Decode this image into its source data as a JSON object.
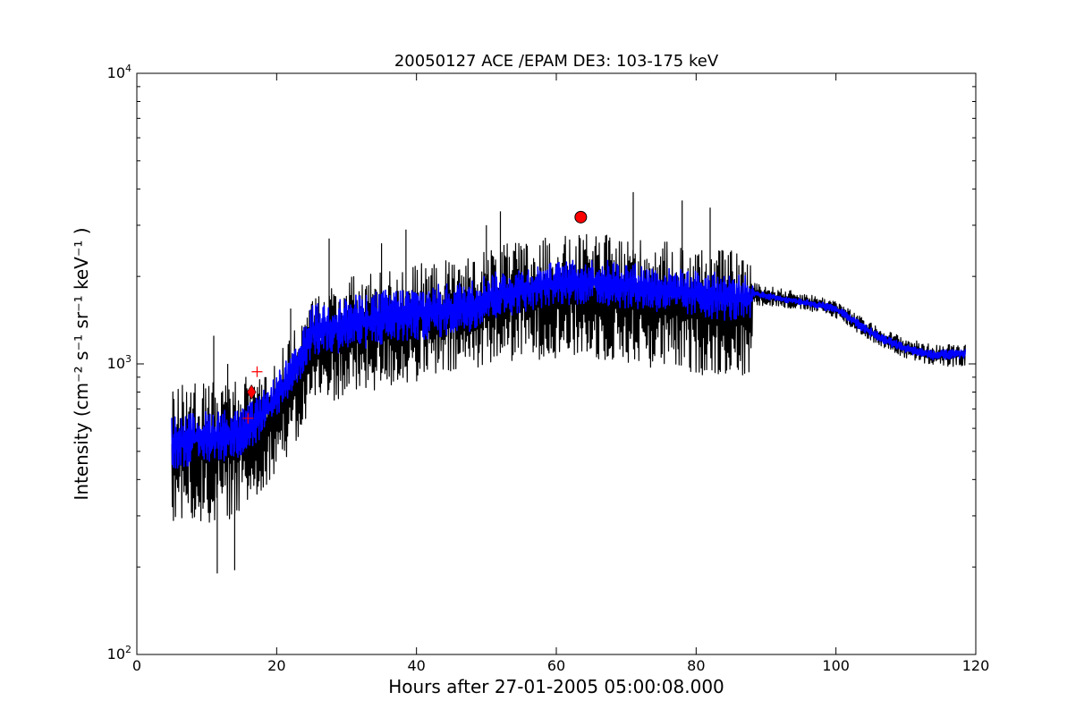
{
  "chart_data": {
    "type": "line",
    "title": "20050127 ACE /EPAM DE3: 103-175 keV",
    "xlabel": "Hours after 27-01-2005 05:00:08.000",
    "ylabel": "Intensity (cm⁻² s⁻¹ sr⁻¹ keV⁻¹ )",
    "xlim": [
      0,
      120
    ],
    "ylim": [
      100,
      10000
    ],
    "yscale": "log",
    "grid": false,
    "x_ticks": [
      0,
      20,
      40,
      60,
      80,
      100,
      120
    ],
    "y_ticks": [
      {
        "value": 100,
        "base": "10",
        "exp": "2"
      },
      {
        "value": 1000,
        "base": "10",
        "exp": "3"
      },
      {
        "value": 10000,
        "base": "10",
        "exp": "4"
      }
    ],
    "series": [
      {
        "role": "raw",
        "color": "#000000",
        "x": [
          5,
          8,
          12,
          15,
          17,
          19,
          21,
          23,
          25,
          30,
          35,
          40,
          45,
          48,
          50,
          55,
          60,
          65,
          70,
          75,
          80,
          85,
          87.8,
          88.2,
          92,
          96,
          100,
          103,
          106,
          110,
          114,
          118.5
        ],
        "low": [
          290,
          280,
          280,
          310,
          330,
          400,
          460,
          520,
          720,
          760,
          810,
          860,
          900,
          950,
          1000,
          1020,
          1050,
          1030,
          1000,
          950,
          920,
          900,
          880,
          1600,
          1560,
          1520,
          1440,
          1280,
          1160,
          1040,
          980,
          980
        ],
        "high": [
          820,
          900,
          880,
          900,
          950,
          1000,
          1150,
          1350,
          1700,
          2000,
          2100,
          2200,
          2300,
          2350,
          2500,
          2650,
          2750,
          2800,
          2750,
          2650,
          2550,
          2450,
          2400,
          1900,
          1820,
          1740,
          1660,
          1480,
          1340,
          1230,
          1160,
          1180
        ],
        "spikes": [
          {
            "x": 11,
            "y": 1250
          },
          {
            "x": 13,
            "y": 1000
          },
          {
            "x": 22,
            "y": 1550
          },
          {
            "x": 27.5,
            "y": 2700
          },
          {
            "x": 35,
            "y": 2600
          },
          {
            "x": 38.5,
            "y": 2900
          },
          {
            "x": 50,
            "y": 3000
          },
          {
            "x": 52,
            "y": 3350
          },
          {
            "x": 71,
            "y": 3900
          },
          {
            "x": 78,
            "y": 3650
          },
          {
            "x": 82,
            "y": 3450
          },
          {
            "x": 11.5,
            "y": 190
          },
          {
            "x": 14,
            "y": 195
          }
        ]
      },
      {
        "role": "smoothed",
        "color": "#0000ff",
        "x": [
          5,
          8,
          12,
          15,
          17,
          19,
          21,
          23,
          25,
          30,
          35,
          40,
          45,
          48,
          50,
          55,
          60,
          65,
          70,
          75,
          80,
          85,
          87.8,
          88.2,
          92,
          96,
          100,
          103,
          106,
          110,
          114,
          118.5
        ],
        "low": [
          430,
          450,
          460,
          480,
          520,
          600,
          720,
          850,
          1050,
          1100,
          1150,
          1200,
          1250,
          1300,
          1400,
          1500,
          1600,
          1600,
          1550,
          1500,
          1450,
          1400,
          1380,
          1700,
          1640,
          1580,
          1500,
          1330,
          1190,
          1090,
          1030,
          1040
        ],
        "high": [
          660,
          680,
          700,
          700,
          760,
          850,
          1000,
          1150,
          1600,
          1700,
          1800,
          1850,
          1900,
          1950,
          2050,
          2150,
          2250,
          2300,
          2250,
          2150,
          2100,
          2050,
          2000,
          1800,
          1720,
          1660,
          1600,
          1430,
          1290,
          1170,
          1110,
          1130
        ]
      }
    ],
    "markers": [
      {
        "shape": "circle",
        "x": 63.5,
        "y": 3200,
        "color": "#ff0000"
      },
      {
        "shape": "diamond",
        "x": 16.4,
        "y": 800,
        "color": "#ff0000"
      },
      {
        "shape": "plus",
        "x": 15.9,
        "y": 650,
        "color": "#ff0000"
      },
      {
        "shape": "plus",
        "x": 17.2,
        "y": 940,
        "color": "#ff0000"
      }
    ]
  }
}
